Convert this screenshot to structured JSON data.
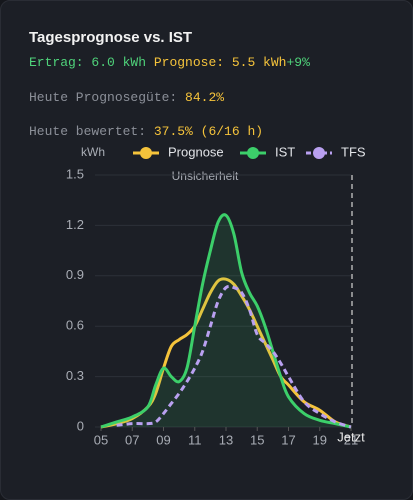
{
  "header": {
    "title": "Tagesprognose vs. IST",
    "line1": [
      "Ertrag: 6.0 kWh",
      "Prognose: 5.5 kWh",
      "+9%"
    ],
    "line2": [
      "Heute Prognosegüte:",
      "84.2%"
    ],
    "line3": [
      "Heute bewertet:",
      "37.5% (6/16 h)"
    ]
  },
  "chart_data": {
    "type": "line",
    "y_label": "kWh",
    "x": [
      5,
      6,
      7,
      8,
      8.5,
      9,
      9.5,
      10,
      10.5,
      11,
      11.5,
      12,
      12.5,
      13,
      13.5,
      14,
      14.5,
      15,
      15.5,
      16,
      16.5,
      17,
      18,
      19,
      20,
      21
    ],
    "series": [
      {
        "name": "Prognose",
        "color": "#f5c33b",
        "dash": false,
        "values": [
          0,
          0.02,
          0.05,
          0.12,
          0.2,
          0.35,
          0.48,
          0.52,
          0.55,
          0.6,
          0.7,
          0.8,
          0.87,
          0.88,
          0.85,
          0.78,
          0.7,
          0.6,
          0.5,
          0.4,
          0.3,
          0.25,
          0.15,
          0.1,
          0.03,
          0
        ]
      },
      {
        "name": "IST",
        "color": "#3ccf6a",
        "dash": false,
        "fill": true,
        "values": [
          0,
          0.03,
          0.06,
          0.12,
          0.25,
          0.35,
          0.3,
          0.27,
          0.35,
          0.6,
          0.85,
          1.05,
          1.22,
          1.26,
          1.15,
          0.92,
          0.8,
          0.72,
          0.6,
          0.45,
          0.3,
          0.18,
          0.08,
          0.04,
          0.02,
          0
        ]
      },
      {
        "name": "TFS",
        "color": "#b9a0f0",
        "dash": true,
        "values": [
          null,
          0.01,
          0.02,
          0.02,
          0.03,
          0.08,
          0.14,
          0.2,
          0.27,
          0.35,
          0.45,
          0.6,
          0.75,
          0.83,
          0.83,
          0.8,
          0.7,
          0.55,
          0.5,
          0.45,
          0.38,
          0.3,
          0.15,
          0.08,
          0.03,
          0
        ]
      }
    ],
    "xlim": [
      5,
      21
    ],
    "xticks": [
      {
        "value": 5,
        "label": "05"
      },
      {
        "value": 7,
        "label": "07"
      },
      {
        "value": 9,
        "label": "09"
      },
      11,
      13,
      15,
      17,
      19,
      21
    ],
    "ylim": [
      0,
      1.5
    ],
    "yticks": [
      0,
      0.3,
      0.6,
      0.9,
      1.2,
      1.5
    ],
    "grid": true,
    "annotations": [
      {
        "text": "Unsicherheit"
      },
      {
        "text": "Jetzt",
        "x": 21
      }
    ]
  }
}
